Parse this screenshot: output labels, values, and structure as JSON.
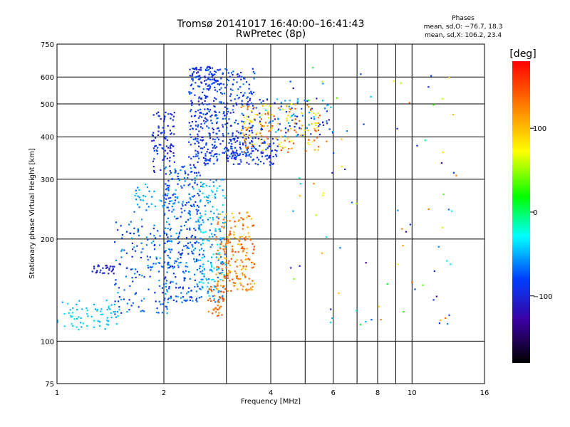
{
  "chart_data": {
    "type": "scatter",
    "title": "Tromsø 20141017 16:40:00–16:41:43",
    "subtitle": "RwPretec (8p)",
    "xlabel": "Frequency [MHz]",
    "ylabel": "Stationary phase Virtual Height [km]",
    "xscale": "log",
    "yscale": "log",
    "xlim": [
      1,
      16
    ],
    "ylim": [
      75,
      750
    ],
    "xticks": [
      1,
      2,
      4,
      6,
      8,
      10,
      16
    ],
    "xtick_labels": [
      "1",
      "2",
      "4",
      "6",
      "8",
      "10",
      "16"
    ],
    "yticks": [
      75,
      100,
      200,
      300,
      400,
      500,
      600,
      750
    ],
    "ytick_labels": [
      "75",
      "100",
      "200",
      "300",
      "400",
      "500",
      "600",
      "750"
    ],
    "grid": true,
    "info": {
      "heading": "Phases",
      "o_stats": "mean, sd,O: −76.7, 18.3",
      "x_stats": "mean, sd,X: 106.2, 23.4"
    },
    "colorbar": {
      "label": "[deg]",
      "range": [
        -180,
        180
      ],
      "ticks": [
        100,
        0,
        -100
      ],
      "tick_labels": [
        "100",
        "0",
        "−100"
      ]
    },
    "clusters": [
      {
        "f": [
          1.0,
          1.5
        ],
        "h": [
          108,
          132
        ],
        "phase": [
          -55,
          -35
        ],
        "n": 70
      },
      {
        "f": [
          1.25,
          1.45
        ],
        "h": [
          158,
          168
        ],
        "phase": [
          -120,
          -90
        ],
        "n": 30
      },
      {
        "f": [
          1.45,
          2.1
        ],
        "h": [
          120,
          230
        ],
        "phase": [
          -100,
          -50
        ],
        "n": 160
      },
      {
        "f": [
          1.65,
          2.2
        ],
        "h": [
          240,
          290
        ],
        "phase": [
          -70,
          -40
        ],
        "n": 40
      },
      {
        "f": [
          1.85,
          2.15
        ],
        "h": [
          310,
          480
        ],
        "phase": [
          -115,
          -80
        ],
        "n": 90
      },
      {
        "f": [
          2.0,
          2.55
        ],
        "h": [
          130,
          330
        ],
        "phase": [
          -100,
          -50
        ],
        "n": 300
      },
      {
        "f": [
          2.35,
          2.8
        ],
        "h": [
          330,
          650
        ],
        "phase": [
          -110,
          -70
        ],
        "n": 260
      },
      {
        "f": [
          2.5,
          3.0
        ],
        "h": [
          130,
          300
        ],
        "phase": [
          -75,
          -30
        ],
        "n": 200
      },
      {
        "f": [
          2.65,
          2.95
        ],
        "h": [
          118,
          145
        ],
        "phase": [
          110,
          150
        ],
        "n": 40
      },
      {
        "f": [
          2.8,
          3.6
        ],
        "h": [
          140,
          240
        ],
        "phase": [
          90,
          150
        ],
        "n": 200
      },
      {
        "f": [
          2.8,
          3.6
        ],
        "h": [
          340,
          640
        ],
        "phase": [
          -110,
          -60
        ],
        "n": 220
      },
      {
        "f": [
          3.0,
          4.2
        ],
        "h": [
          330,
          400
        ],
        "phase": [
          -110,
          -80
        ],
        "n": 110
      },
      {
        "f": [
          3.3,
          5.5
        ],
        "h": [
          360,
          500
        ],
        "phase": [
          60,
          150
        ],
        "n": 160
      },
      {
        "f": [
          3.6,
          6.0
        ],
        "h": [
          400,
          520
        ],
        "phase": [
          -120,
          -40
        ],
        "n": 90
      },
      {
        "f": [
          4.5,
          13.5
        ],
        "h": [
          110,
          650
        ],
        "phase": [
          -130,
          140
        ],
        "n": 90
      }
    ]
  }
}
